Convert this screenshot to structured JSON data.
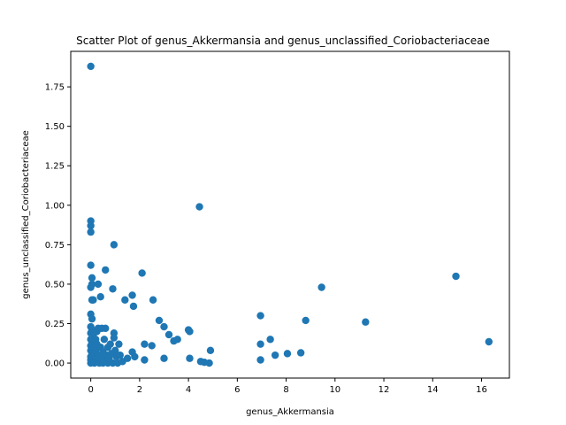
{
  "chart_data": {
    "type": "scatter",
    "title": "Scatter Plot of genus_Akkermansia and genus_unclassified_Coriobacteriaceae",
    "xlabel": "genus_Akkermansia",
    "ylabel": "genus_unclassified_Coriobacteriaceae",
    "xlim": [
      -0.82,
      17.14
    ],
    "ylim": [
      -0.095,
      1.975
    ],
    "xticks": [
      0,
      2,
      4,
      6,
      8,
      10,
      12,
      14,
      16
    ],
    "xtick_labels": [
      "0",
      "2",
      "4",
      "6",
      "8",
      "10",
      "12",
      "14",
      "16"
    ],
    "yticks": [
      0.0,
      0.25,
      0.5,
      0.75,
      1.0,
      1.25,
      1.5,
      1.75
    ],
    "ytick_labels": [
      "0.00",
      "0.25",
      "0.50",
      "0.75",
      "1.00",
      "1.25",
      "1.50",
      "1.75"
    ],
    "grid": false,
    "marker_color": "#1f77b4",
    "points": [
      [
        0.0,
        1.88
      ],
      [
        0.0,
        0.9
      ],
      [
        0.0,
        0.87
      ],
      [
        0.0,
        0.83
      ],
      [
        0.0,
        0.62
      ],
      [
        0.05,
        0.54
      ],
      [
        0.05,
        0.5
      ],
      [
        0.0,
        0.48
      ],
      [
        0.05,
        0.4
      ],
      [
        0.1,
        0.4
      ],
      [
        0.0,
        0.31
      ],
      [
        0.05,
        0.28
      ],
      [
        0.0,
        0.23
      ],
      [
        0.05,
        0.21
      ],
      [
        0.0,
        0.19
      ],
      [
        0.1,
        0.17
      ],
      [
        0.0,
        0.15
      ],
      [
        0.05,
        0.13
      ],
      [
        0.0,
        0.11
      ],
      [
        0.1,
        0.1
      ],
      [
        0.0,
        0.08
      ],
      [
        0.05,
        0.06
      ],
      [
        0.0,
        0.04
      ],
      [
        0.1,
        0.03
      ],
      [
        0.0,
        0.02
      ],
      [
        0.05,
        0.01
      ],
      [
        0.0,
        0.0
      ],
      [
        0.15,
        0.0
      ],
      [
        0.2,
        0.02
      ],
      [
        0.15,
        0.05
      ],
      [
        0.2,
        0.08
      ],
      [
        0.25,
        0.12
      ],
      [
        0.2,
        0.15
      ],
      [
        0.25,
        0.2
      ],
      [
        0.3,
        0.22
      ],
      [
        0.3,
        0.5
      ],
      [
        0.35,
        0.0
      ],
      [
        0.35,
        0.05
      ],
      [
        0.4,
        0.03
      ],
      [
        0.4,
        0.1
      ],
      [
        0.4,
        0.42
      ],
      [
        0.45,
        0.22
      ],
      [
        0.5,
        0.0
      ],
      [
        0.5,
        0.07
      ],
      [
        0.55,
        0.02
      ],
      [
        0.55,
        0.15
      ],
      [
        0.6,
        0.59
      ],
      [
        0.6,
        0.22
      ],
      [
        0.65,
        0.05
      ],
      [
        0.7,
        0.0
      ],
      [
        0.7,
        0.1
      ],
      [
        0.75,
        0.03
      ],
      [
        0.8,
        0.12
      ],
      [
        0.85,
        0.06
      ],
      [
        0.9,
        0.47
      ],
      [
        0.9,
        0.0
      ],
      [
        0.95,
        0.75
      ],
      [
        0.95,
        0.19
      ],
      [
        0.95,
        0.16
      ],
      [
        1.0,
        0.08
      ],
      [
        1.05,
        0.04
      ],
      [
        1.1,
        0.0
      ],
      [
        1.15,
        0.12
      ],
      [
        1.2,
        0.05
      ],
      [
        1.3,
        0.01
      ],
      [
        1.4,
        0.4
      ],
      [
        1.5,
        0.03
      ],
      [
        1.7,
        0.43
      ],
      [
        1.75,
        0.36
      ],
      [
        1.7,
        0.07
      ],
      [
        1.8,
        0.04
      ],
      [
        2.1,
        0.57
      ],
      [
        2.2,
        0.12
      ],
      [
        2.2,
        0.02
      ],
      [
        2.5,
        0.11
      ],
      [
        2.55,
        0.4
      ],
      [
        2.8,
        0.27
      ],
      [
        3.0,
        0.23
      ],
      [
        3.0,
        0.03
      ],
      [
        3.2,
        0.18
      ],
      [
        3.4,
        0.14
      ],
      [
        3.55,
        0.15
      ],
      [
        4.0,
        0.21
      ],
      [
        4.05,
        0.2
      ],
      [
        4.05,
        0.03
      ],
      [
        4.45,
        0.99
      ],
      [
        4.5,
        0.01
      ],
      [
        4.65,
        0.005
      ],
      [
        4.85,
        0.0
      ],
      [
        4.9,
        0.08
      ],
      [
        6.95,
        0.3
      ],
      [
        6.95,
        0.12
      ],
      [
        6.95,
        0.02
      ],
      [
        7.35,
        0.15
      ],
      [
        7.55,
        0.05
      ],
      [
        8.05,
        0.06
      ],
      [
        8.6,
        0.065
      ],
      [
        8.8,
        0.27
      ],
      [
        9.45,
        0.48
      ],
      [
        11.25,
        0.26
      ],
      [
        14.95,
        0.55
      ],
      [
        16.3,
        0.135
      ]
    ]
  }
}
